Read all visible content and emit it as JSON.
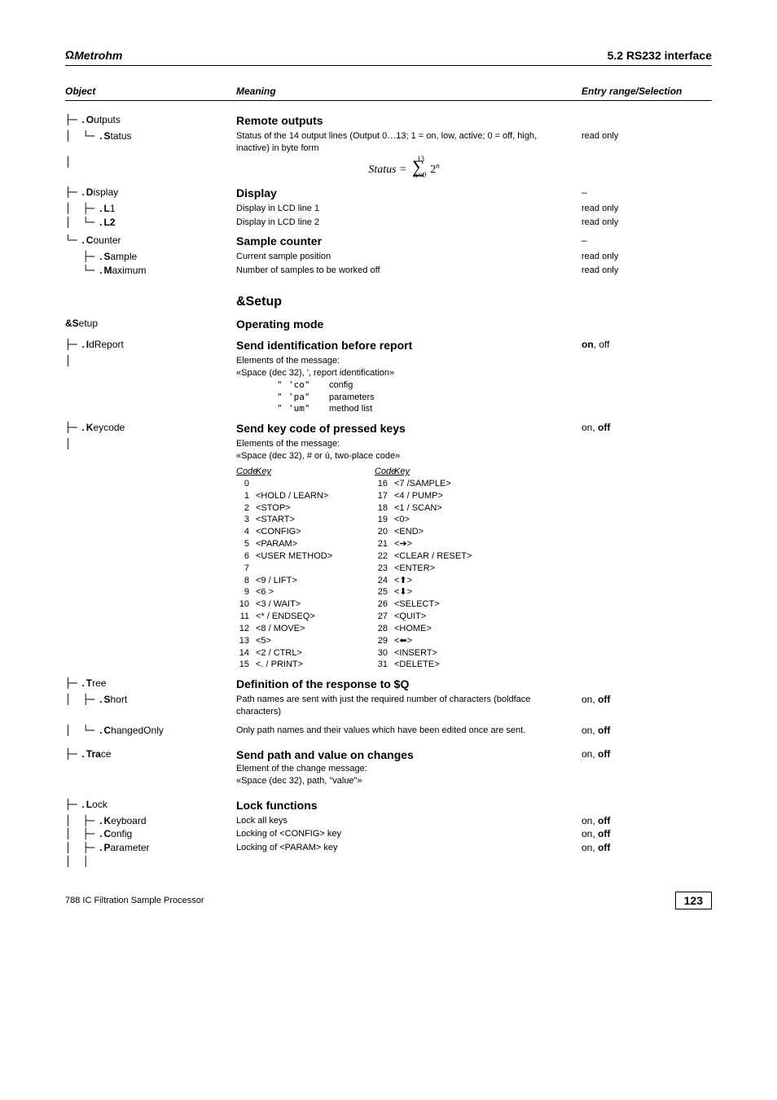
{
  "header": {
    "brand_prefix": "Ω",
    "brand": "Metrohm",
    "section": "5.2  RS232 interface"
  },
  "colhead": {
    "c1": "Object",
    "c2": "Meaning",
    "c3": "Entry range/Selection"
  },
  "outputs": {
    "label_full": "Outputs",
    "label_first": "O",
    "label_rest": "utputs",
    "heading": "Remote outputs",
    "status": {
      "label_first": "S",
      "label_rest": "tatus",
      "desc": "Status of the 14 output lines (Output 0…13; 1 = on, low, active; 0 = off, high, inactive) in byte form",
      "range": "read only",
      "formula_lhs": "Status =",
      "sigma_top": "13",
      "sigma_bot": "n=0",
      "formula_rhs_base": "2",
      "formula_rhs_exp": "n"
    }
  },
  "display": {
    "label_first": "D",
    "label_rest": "isplay",
    "heading": "Display",
    "range": "–",
    "l1": {
      "label_first": "L",
      "label_rest": "1",
      "desc": "Display in LCD line 1",
      "range": "read only"
    },
    "l2": {
      "label_first": "L2",
      "desc": "Display in LCD line 2",
      "range": "read only"
    }
  },
  "counter": {
    "label_first": "C",
    "label_rest": "ounter",
    "heading": "Sample counter",
    "range": "–",
    "sample": {
      "label_first": "S",
      "label_rest": "ample",
      "desc": "Current sample position",
      "range": "read only"
    },
    "max": {
      "label_first": "M",
      "label_rest": "aximum",
      "desc": "Number of samples to be worked off",
      "range": "read only"
    }
  },
  "setup_heading": "&Setup",
  "setup": {
    "root_first": "&S",
    "root_rest": "etup",
    "heading": "Operating mode",
    "idreport": {
      "label_first": "I",
      "label_rest": "dReport",
      "heading": "Send identification before report",
      "range_bold": "on",
      "range_rest": ", off",
      "desc1": "Elements of the message:",
      "desc2": "«Space (dec 32), ', report identification»",
      "rows": [
        {
          "q": "\"",
          "code": "'co\"",
          "meaning": "config"
        },
        {
          "q": "\"",
          "code": "'pa\"",
          "meaning": "parameters"
        },
        {
          "q": "\"",
          "code": "'um\"",
          "meaning": "method list"
        }
      ]
    },
    "keycode": {
      "label_first": "K",
      "label_rest": "eycode",
      "heading": "Send key code of pressed keys",
      "range_pre": "on, ",
      "range_bold": "off",
      "desc1": "Elements of the message:",
      "desc2": "«Space (dec 32), # or ù, two-place code»",
      "colhead": "Code  Key",
      "left": [
        {
          "c": "0",
          "k": ""
        },
        {
          "c": "1",
          "k": "<HOLD / LEARN>"
        },
        {
          "c": "2",
          "k": "<STOP>"
        },
        {
          "c": "3",
          "k": "<START>"
        },
        {
          "c": "4",
          "k": "<CONFIG>"
        },
        {
          "c": "5",
          "k": "<PARAM>"
        },
        {
          "c": "6",
          "k": "<USER METHOD>"
        },
        {
          "c": "7",
          "k": ""
        },
        {
          "c": "8",
          "k": "<9 / LIFT>"
        },
        {
          "c": "9",
          "k": "<6 >"
        },
        {
          "c": "10",
          "k": "<3 / WAIT>"
        },
        {
          "c": "11",
          "k": "<* / ENDSEQ>"
        },
        {
          "c": "12",
          "k": "<8 / MOVE>"
        },
        {
          "c": "13",
          "k": "<5>"
        },
        {
          "c": "14",
          "k": "<2 / CTRL>"
        },
        {
          "c": "15",
          "k": "<. / PRINT>"
        }
      ],
      "right": [
        {
          "c": "16",
          "k": "<7 /SAMPLE>"
        },
        {
          "c": "17",
          "k": "<4 / PUMP>"
        },
        {
          "c": "18",
          "k": "<1 / SCAN>"
        },
        {
          "c": "19",
          "k": "<0>"
        },
        {
          "c": "20",
          "k": "<END>"
        },
        {
          "c": "21",
          "k": "<➔>"
        },
        {
          "c": "22",
          "k": "<CLEAR / RESET>"
        },
        {
          "c": "23",
          "k": "<ENTER>"
        },
        {
          "c": "24",
          "k": "<⬆>"
        },
        {
          "c": "25",
          "k": "<⬇>"
        },
        {
          "c": "26",
          "k": "<SELECT>"
        },
        {
          "c": "27",
          "k": "<QUIT>"
        },
        {
          "c": "28",
          "k": "<HOME>"
        },
        {
          "c": "29",
          "k": "<⬅>"
        },
        {
          "c": "30",
          "k": "<INSERT>"
        },
        {
          "c": "31",
          "k": "<DELETE>"
        }
      ]
    },
    "tree": {
      "label_first": "T",
      "label_rest": "ree",
      "heading": "Definition of the response to $Q",
      "short": {
        "label_first": "S",
        "label_rest": "hort",
        "desc": "Path names are sent with just the required number of characters (boldface characters)",
        "range_pre": "on, ",
        "range_bold": "off"
      },
      "changed": {
        "label_first": "C",
        "label_rest": "hangedOnly",
        "desc": "Only path names and their values which have been edited once are sent.",
        "range_pre": "on, ",
        "range_bold": "off"
      }
    },
    "trace": {
      "label_first": "Tra",
      "label_rest": "ce",
      "heading": "Send path and value on changes",
      "desc1": "Element of the change message:",
      "desc2": "«Space (dec 32), path, \"value\"»",
      "range_pre": "on, ",
      "range_bold": "off"
    },
    "lock": {
      "label_first": "L",
      "label_rest": "ock",
      "heading": "Lock functions",
      "keyboard": {
        "label_first": "K",
        "label_rest": "eyboard",
        "desc": "Lock all keys",
        "range_pre": "on, ",
        "range_bold": "off"
      },
      "config": {
        "label_first": "C",
        "label_rest": "onfig",
        "desc": "Locking of <CONFIG> key",
        "range_pre": "on, ",
        "range_bold": "off"
      },
      "param": {
        "label_first": "P",
        "label_rest": "arameter",
        "desc": "Locking of <PARAM> key",
        "range_pre": "on, ",
        "range_bold": "off"
      }
    }
  },
  "footer": {
    "left": "788 IC Filtration Sample Processor",
    "page": "123"
  }
}
